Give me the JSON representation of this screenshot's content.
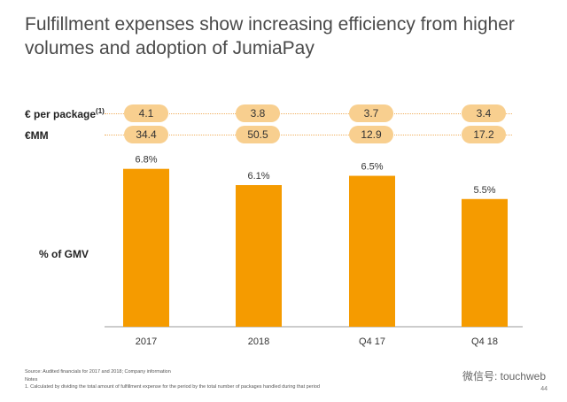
{
  "title": "Fulfillment expenses show increasing efficiency from higher volumes and adoption of JumiaPay",
  "rows": {
    "per_package": {
      "label": "€ per package",
      "sup": "(1)",
      "values": [
        "4.1",
        "3.8",
        "3.7",
        "3.4"
      ]
    },
    "mm": {
      "label": "€MM",
      "values": [
        "34.4",
        "50.5",
        "12.9",
        "17.2"
      ]
    }
  },
  "gmv_label": "% of GMV",
  "chart_data": {
    "type": "bar",
    "categories": [
      "2017",
      "2018",
      "Q4 17",
      "Q4 18"
    ],
    "values": [
      6.8,
      6.1,
      6.5,
      5.5
    ],
    "value_labels": [
      "6.8%",
      "6.1%",
      "6.5%",
      "5.5%"
    ],
    "title": "",
    "ylabel": "% of GMV",
    "ylim": [
      0,
      9
    ],
    "color": "#f59b00"
  },
  "footer": {
    "source": "Source: Audited financials for 2017 and 2018; Company information",
    "notes_title": "Notes",
    "note1": "1.    Calculated by dividing the total amount of fulfillment expense for the period by the total number of packages handled during that period"
  },
  "watermark": "微信号: touchweb",
  "page_number": "44"
}
